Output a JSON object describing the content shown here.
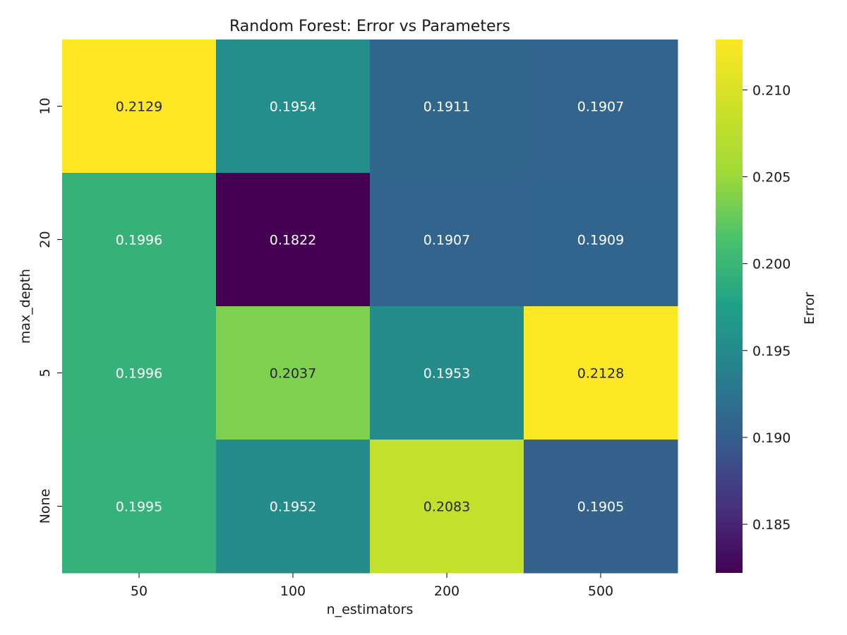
{
  "chart_data": {
    "type": "heatmap",
    "title": "Random Forest: Error vs Parameters",
    "xlabel": "n_estimators",
    "ylabel": "max_depth",
    "x_categories": [
      "50",
      "100",
      "200",
      "500"
    ],
    "y_categories": [
      "10",
      "20",
      "5",
      "None"
    ],
    "values": [
      [
        0.2129,
        0.1954,
        0.1911,
        0.1907
      ],
      [
        0.1996,
        0.1822,
        0.1907,
        0.1909
      ],
      [
        0.1996,
        0.2037,
        0.1953,
        0.2128
      ],
      [
        0.1995,
        0.1952,
        0.2083,
        0.1905
      ]
    ],
    "cell_labels": [
      [
        "0.2129",
        "0.1954",
        "0.1911",
        "0.1907"
      ],
      [
        "0.1996",
        "0.1822",
        "0.1907",
        "0.1909"
      ],
      [
        "0.1996",
        "0.2037",
        "0.1953",
        "0.2128"
      ],
      [
        "0.1995",
        "0.1952",
        "0.2083",
        "0.1905"
      ]
    ],
    "colormap": "viridis",
    "colorbar": {
      "label": "Error",
      "vmin": 0.1822,
      "vmax": 0.2129,
      "ticks": [
        0.185,
        0.19,
        0.195,
        0.2,
        0.205,
        0.21
      ],
      "tick_labels": [
        "0.185",
        "0.190",
        "0.195",
        "0.200",
        "0.205",
        "0.210"
      ]
    },
    "grid": false
  }
}
